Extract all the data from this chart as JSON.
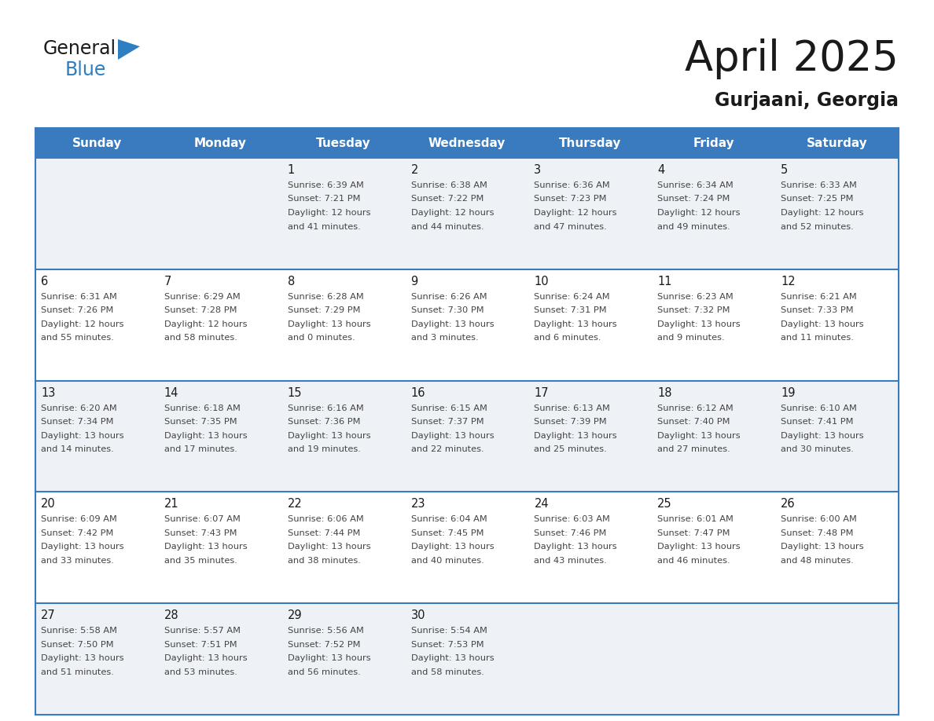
{
  "title": "April 2025",
  "subtitle": "Gurjaani, Georgia",
  "header_bg_color": "#3a7bbf",
  "header_text_color": "#ffffff",
  "border_color": "#3a7bbf",
  "day_headers": [
    "Sunday",
    "Monday",
    "Tuesday",
    "Wednesday",
    "Thursday",
    "Friday",
    "Saturday"
  ],
  "title_color": "#1a1a1a",
  "subtitle_color": "#1a1a1a",
  "day_num_color": "#1a1a1a",
  "cell_text_color": "#444444",
  "logo_black": "#1a1a1a",
  "logo_blue": "#2e7fc1",
  "logo_triangle": "#2e7fc1",
  "row_bg_even": "#eef2f7",
  "row_bg_odd": "#ffffff",
  "days": [
    {
      "day": null,
      "col": 0,
      "row": 0
    },
    {
      "day": null,
      "col": 1,
      "row": 0
    },
    {
      "day": 1,
      "col": 2,
      "row": 0,
      "sunrise": "6:39 AM",
      "sunset": "7:21 PM",
      "daylight_h": "12 hours",
      "daylight_m": "and 41 minutes."
    },
    {
      "day": 2,
      "col": 3,
      "row": 0,
      "sunrise": "6:38 AM",
      "sunset": "7:22 PM",
      "daylight_h": "12 hours",
      "daylight_m": "and 44 minutes."
    },
    {
      "day": 3,
      "col": 4,
      "row": 0,
      "sunrise": "6:36 AM",
      "sunset": "7:23 PM",
      "daylight_h": "12 hours",
      "daylight_m": "and 47 minutes."
    },
    {
      "day": 4,
      "col": 5,
      "row": 0,
      "sunrise": "6:34 AM",
      "sunset": "7:24 PM",
      "daylight_h": "12 hours",
      "daylight_m": "and 49 minutes."
    },
    {
      "day": 5,
      "col": 6,
      "row": 0,
      "sunrise": "6:33 AM",
      "sunset": "7:25 PM",
      "daylight_h": "12 hours",
      "daylight_m": "and 52 minutes."
    },
    {
      "day": 6,
      "col": 0,
      "row": 1,
      "sunrise": "6:31 AM",
      "sunset": "7:26 PM",
      "daylight_h": "12 hours",
      "daylight_m": "and 55 minutes."
    },
    {
      "day": 7,
      "col": 1,
      "row": 1,
      "sunrise": "6:29 AM",
      "sunset": "7:28 PM",
      "daylight_h": "12 hours",
      "daylight_m": "and 58 minutes."
    },
    {
      "day": 8,
      "col": 2,
      "row": 1,
      "sunrise": "6:28 AM",
      "sunset": "7:29 PM",
      "daylight_h": "13 hours",
      "daylight_m": "and 0 minutes."
    },
    {
      "day": 9,
      "col": 3,
      "row": 1,
      "sunrise": "6:26 AM",
      "sunset": "7:30 PM",
      "daylight_h": "13 hours",
      "daylight_m": "and 3 minutes."
    },
    {
      "day": 10,
      "col": 4,
      "row": 1,
      "sunrise": "6:24 AM",
      "sunset": "7:31 PM",
      "daylight_h": "13 hours",
      "daylight_m": "and 6 minutes."
    },
    {
      "day": 11,
      "col": 5,
      "row": 1,
      "sunrise": "6:23 AM",
      "sunset": "7:32 PM",
      "daylight_h": "13 hours",
      "daylight_m": "and 9 minutes."
    },
    {
      "day": 12,
      "col": 6,
      "row": 1,
      "sunrise": "6:21 AM",
      "sunset": "7:33 PM",
      "daylight_h": "13 hours",
      "daylight_m": "and 11 minutes."
    },
    {
      "day": 13,
      "col": 0,
      "row": 2,
      "sunrise": "6:20 AM",
      "sunset": "7:34 PM",
      "daylight_h": "13 hours",
      "daylight_m": "and 14 minutes."
    },
    {
      "day": 14,
      "col": 1,
      "row": 2,
      "sunrise": "6:18 AM",
      "sunset": "7:35 PM",
      "daylight_h": "13 hours",
      "daylight_m": "and 17 minutes."
    },
    {
      "day": 15,
      "col": 2,
      "row": 2,
      "sunrise": "6:16 AM",
      "sunset": "7:36 PM",
      "daylight_h": "13 hours",
      "daylight_m": "and 19 minutes."
    },
    {
      "day": 16,
      "col": 3,
      "row": 2,
      "sunrise": "6:15 AM",
      "sunset": "7:37 PM",
      "daylight_h": "13 hours",
      "daylight_m": "and 22 minutes."
    },
    {
      "day": 17,
      "col": 4,
      "row": 2,
      "sunrise": "6:13 AM",
      "sunset": "7:39 PM",
      "daylight_h": "13 hours",
      "daylight_m": "and 25 minutes."
    },
    {
      "day": 18,
      "col": 5,
      "row": 2,
      "sunrise": "6:12 AM",
      "sunset": "7:40 PM",
      "daylight_h": "13 hours",
      "daylight_m": "and 27 minutes."
    },
    {
      "day": 19,
      "col": 6,
      "row": 2,
      "sunrise": "6:10 AM",
      "sunset": "7:41 PM",
      "daylight_h": "13 hours",
      "daylight_m": "and 30 minutes."
    },
    {
      "day": 20,
      "col": 0,
      "row": 3,
      "sunrise": "6:09 AM",
      "sunset": "7:42 PM",
      "daylight_h": "13 hours",
      "daylight_m": "and 33 minutes."
    },
    {
      "day": 21,
      "col": 1,
      "row": 3,
      "sunrise": "6:07 AM",
      "sunset": "7:43 PM",
      "daylight_h": "13 hours",
      "daylight_m": "and 35 minutes."
    },
    {
      "day": 22,
      "col": 2,
      "row": 3,
      "sunrise": "6:06 AM",
      "sunset": "7:44 PM",
      "daylight_h": "13 hours",
      "daylight_m": "and 38 minutes."
    },
    {
      "day": 23,
      "col": 3,
      "row": 3,
      "sunrise": "6:04 AM",
      "sunset": "7:45 PM",
      "daylight_h": "13 hours",
      "daylight_m": "and 40 minutes."
    },
    {
      "day": 24,
      "col": 4,
      "row": 3,
      "sunrise": "6:03 AM",
      "sunset": "7:46 PM",
      "daylight_h": "13 hours",
      "daylight_m": "and 43 minutes."
    },
    {
      "day": 25,
      "col": 5,
      "row": 3,
      "sunrise": "6:01 AM",
      "sunset": "7:47 PM",
      "daylight_h": "13 hours",
      "daylight_m": "and 46 minutes."
    },
    {
      "day": 26,
      "col": 6,
      "row": 3,
      "sunrise": "6:00 AM",
      "sunset": "7:48 PM",
      "daylight_h": "13 hours",
      "daylight_m": "and 48 minutes."
    },
    {
      "day": 27,
      "col": 0,
      "row": 4,
      "sunrise": "5:58 AM",
      "sunset": "7:50 PM",
      "daylight_h": "13 hours",
      "daylight_m": "and 51 minutes."
    },
    {
      "day": 28,
      "col": 1,
      "row": 4,
      "sunrise": "5:57 AM",
      "sunset": "7:51 PM",
      "daylight_h": "13 hours",
      "daylight_m": "and 53 minutes."
    },
    {
      "day": 29,
      "col": 2,
      "row": 4,
      "sunrise": "5:56 AM",
      "sunset": "7:52 PM",
      "daylight_h": "13 hours",
      "daylight_m": "and 56 minutes."
    },
    {
      "day": 30,
      "col": 3,
      "row": 4,
      "sunrise": "5:54 AM",
      "sunset": "7:53 PM",
      "daylight_h": "13 hours",
      "daylight_m": "and 58 minutes."
    },
    {
      "day": null,
      "col": 4,
      "row": 4
    },
    {
      "day": null,
      "col": 5,
      "row": 4
    },
    {
      "day": null,
      "col": 6,
      "row": 4
    }
  ]
}
